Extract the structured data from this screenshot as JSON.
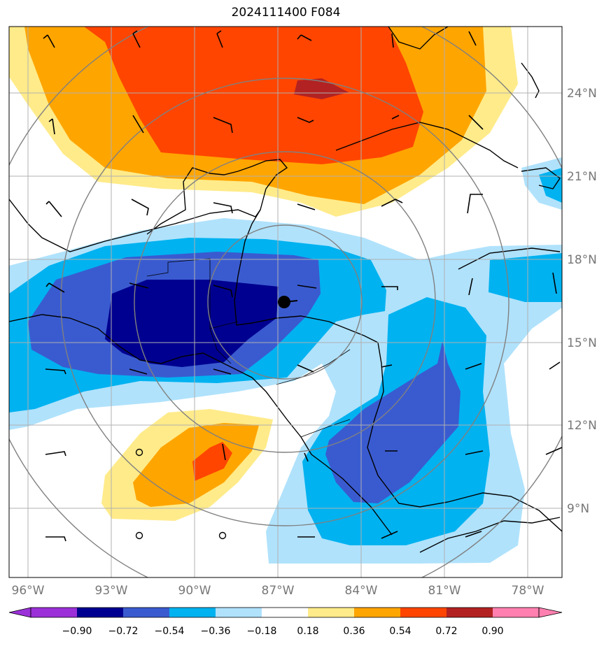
{
  "title": "2024111400 F084",
  "map": {
    "lon_labels": [
      "96°W",
      "93°W",
      "90°W",
      "87°W",
      "84°W",
      "81°W",
      "78°W"
    ],
    "lat_labels": [
      "24°N",
      "21°N",
      "18°N",
      "15°N",
      "12°N",
      "9°N"
    ],
    "storm_center": {
      "lon": -86.7,
      "lat": 16.5
    },
    "range_rings": "concentric circles around storm center"
  },
  "colorbar": {
    "ticks": [
      "−0.90",
      "−0.72",
      "−0.54",
      "−0.36",
      "−0.18",
      "0.18",
      "0.36",
      "0.54",
      "0.72",
      "0.90"
    ],
    "colors": [
      "#9b30d9",
      "#000090",
      "#3a5bd0",
      "#00b2f0",
      "#b0e2fc",
      "#ffffff",
      "#ffeb8a",
      "#ffa500",
      "#ff4500",
      "#b22222",
      "#ff80b0"
    ]
  }
}
